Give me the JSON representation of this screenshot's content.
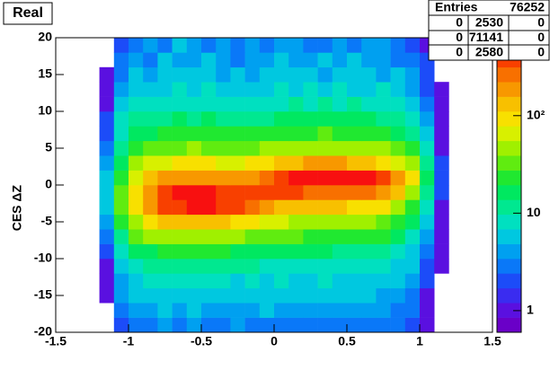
{
  "chart_data": {
    "type": "heatmap",
    "title": "Real",
    "y_label": "CES ΔZ",
    "xlim": [
      -1.5,
      1.5
    ],
    "ylim": [
      -20,
      20
    ],
    "xticks": [
      -1.5,
      -1,
      -0.5,
      0,
      0.5,
      1,
      1.5
    ],
    "yticks": [
      -20,
      -15,
      -10,
      -5,
      0,
      5,
      10,
      15,
      20
    ],
    "zlim": [
      0.6,
      630
    ],
    "zlog": true,
    "zticks": [
      1,
      10,
      {
        "value": 100,
        "label": "10²"
      }
    ],
    "palette": [
      "#6a00c8",
      "#5a10e0",
      "#3a2cf0",
      "#1c4cf8",
      "#0a78f8",
      "#00a0f0",
      "#00c8e0",
      "#00e0c0",
      "#00e890",
      "#00e860",
      "#20e830",
      "#60ec10",
      "#a0f000",
      "#d8f000",
      "#f8e000",
      "#f8c000",
      "#f89800",
      "#f87000",
      "#f84000",
      "#f81010"
    ],
    "xbins": [
      -1.2,
      -1.1,
      -1,
      -0.9,
      -0.8,
      -0.7,
      -0.6,
      -0.5,
      -0.4,
      -0.3,
      -0.2,
      -0.1,
      0,
      0.1,
      0.2,
      0.3,
      0.4,
      0.5,
      0.6,
      0.7,
      0.8,
      0.9,
      1,
      1.1,
      1.2
    ],
    "ybins": [
      -20,
      -18,
      -16,
      -14,
      -12,
      -10,
      -8,
      -6,
      -4,
      -2,
      0,
      2,
      4,
      6,
      8,
      10,
      12,
      14,
      16,
      18,
      20
    ],
    "z": [
      [
        0,
        2,
        3,
        3,
        4,
        3,
        4,
        3,
        3,
        4,
        3,
        3,
        3,
        3,
        3,
        3,
        3,
        3,
        3,
        3,
        3,
        2,
        1,
        0
      ],
      [
        0,
        3,
        4,
        4,
        5,
        4,
        5,
        4,
        4,
        4,
        4,
        5,
        4,
        4,
        4,
        4,
        4,
        4,
        4,
        4,
        3,
        3,
        1,
        0
      ],
      [
        1,
        4,
        5,
        5,
        6,
        5,
        6,
        5,
        5,
        6,
        5,
        5,
        5,
        5,
        5,
        5,
        5,
        5,
        5,
        4,
        4,
        3,
        1,
        0
      ],
      [
        1,
        4,
        6,
        7,
        7,
        8,
        7,
        8,
        7,
        6,
        7,
        6,
        7,
        6,
        6,
        7,
        6,
        6,
        6,
        5,
        5,
        4,
        2,
        0
      ],
      [
        1,
        6,
        9,
        10,
        11,
        11,
        12,
        11,
        10,
        10,
        10,
        9,
        9,
        9,
        9,
        8,
        9,
        8,
        8,
        7,
        6,
        5,
        2,
        1
      ],
      [
        2,
        8,
        15,
        18,
        20,
        22,
        22,
        21,
        20,
        18,
        17,
        16,
        15,
        14,
        14,
        14,
        13,
        12,
        12,
        11,
        9,
        6,
        3,
        1
      ],
      [
        3,
        12,
        28,
        40,
        48,
        52,
        55,
        52,
        48,
        42,
        38,
        32,
        30,
        28,
        26,
        26,
        25,
        24,
        22,
        20,
        15,
        9,
        4,
        1
      ],
      [
        4,
        20,
        55,
        90,
        120,
        140,
        150,
        145,
        130,
        110,
        90,
        70,
        60,
        55,
        50,
        50,
        48,
        45,
        40,
        35,
        25,
        14,
        5,
        1
      ],
      [
        5,
        28,
        100,
        200,
        330,
        420,
        460,
        450,
        410,
        340,
        250,
        180,
        150,
        130,
        120,
        120,
        115,
        110,
        100,
        80,
        50,
        25,
        8,
        1
      ],
      [
        6,
        30,
        110,
        220,
        380,
        460,
        480,
        470,
        440,
        400,
        350,
        320,
        330,
        320,
        300,
        310,
        300,
        290,
        270,
        220,
        120,
        50,
        12,
        2
      ],
      [
        5,
        25,
        70,
        120,
        170,
        200,
        210,
        200,
        180,
        170,
        210,
        300,
        420,
        480,
        500,
        520,
        510,
        500,
        480,
        400,
        220,
        80,
        15,
        2
      ],
      [
        4,
        18,
        40,
        60,
        75,
        80,
        85,
        80,
        75,
        70,
        80,
        100,
        130,
        150,
        160,
        165,
        160,
        150,
        130,
        110,
        75,
        40,
        10,
        2
      ],
      [
        3,
        12,
        22,
        30,
        35,
        38,
        40,
        38,
        36,
        35,
        38,
        42,
        48,
        52,
        55,
        55,
        54,
        52,
        48,
        42,
        32,
        20,
        7,
        1
      ],
      [
        2,
        9,
        15,
        18,
        20,
        22,
        22,
        21,
        20,
        20,
        22,
        23,
        25,
        26,
        27,
        28,
        27,
        26,
        25,
        22,
        18,
        13,
        5,
        1
      ],
      [
        2,
        7,
        10,
        12,
        13,
        14,
        13,
        14,
        12,
        13,
        12,
        13,
        14,
        15,
        16,
        15,
        16,
        15,
        14,
        13,
        12,
        9,
        4,
        1
      ],
      [
        1,
        5,
        7,
        8,
        9,
        8,
        9,
        9,
        8,
        8,
        9,
        8,
        9,
        10,
        9,
        10,
        9,
        10,
        9,
        8,
        7,
        6,
        3,
        1
      ],
      [
        1,
        4,
        6,
        5,
        6,
        7,
        6,
        7,
        6,
        5,
        6,
        6,
        7,
        6,
        7,
        6,
        7,
        6,
        6,
        7,
        5,
        4,
        2,
        1
      ],
      [
        1,
        3,
        5,
        4,
        5,
        6,
        5,
        5,
        4,
        5,
        4,
        5,
        5,
        6,
        5,
        4,
        5,
        5,
        6,
        4,
        5,
        4,
        2,
        0
      ],
      [
        0,
        3,
        4,
        3,
        5,
        4,
        4,
        5,
        4,
        3,
        4,
        4,
        5,
        4,
        4,
        5,
        4,
        5,
        4,
        4,
        3,
        3,
        2,
        0
      ],
      [
        0,
        2,
        3,
        4,
        3,
        5,
        4,
        3,
        4,
        3,
        4,
        3,
        4,
        4,
        3,
        3,
        4,
        3,
        4,
        4,
        3,
        2,
        1,
        0
      ]
    ],
    "stats": {
      "label": "Entries",
      "entries": 76252,
      "grid": [
        [
          0,
          2530,
          0
        ],
        [
          0,
          71141,
          0
        ],
        [
          0,
          2580,
          0
        ]
      ]
    }
  }
}
